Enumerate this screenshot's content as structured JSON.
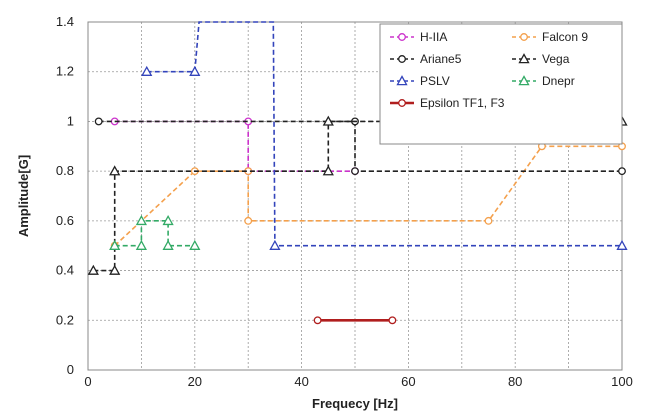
{
  "chart_data": {
    "type": "line",
    "xlabel": "Frequecy [Hz]",
    "ylabel": "Amplitude[G]",
    "xlim": [
      0,
      100
    ],
    "ylim": [
      0,
      1.4
    ],
    "xticks": [
      0,
      20,
      40,
      60,
      80,
      100
    ],
    "yticks": [
      0,
      0.2,
      0.4,
      0.6,
      0.8,
      1,
      1.2,
      1.4
    ],
    "ytick_labels": [
      "0",
      "0.2",
      "0.4",
      "0.6",
      "0.8",
      "1",
      "1.2",
      "1.4"
    ],
    "grid": true,
    "legend_position": "top-right",
    "series": [
      {
        "name": "H-IIA",
        "color": "#cc33cc",
        "marker": "circle",
        "style": "dashed",
        "x": [
          5,
          30,
          30,
          50
        ],
        "y": [
          1.0,
          1.0,
          0.8,
          0.8
        ]
      },
      {
        "name": "Falcon 9",
        "color": "#f4a04c",
        "marker": "circle",
        "style": "dashed",
        "x": [
          5,
          20,
          30,
          30,
          75,
          85,
          100
        ],
        "y": [
          0.5,
          0.8,
          0.8,
          0.6,
          0.6,
          0.9,
          0.9
        ]
      },
      {
        "name": "Ariane5",
        "color": "#222222",
        "marker": "circle",
        "style": "dashed",
        "x": [
          2,
          50,
          50,
          100
        ],
        "y": [
          1.0,
          1.0,
          0.8,
          0.8
        ]
      },
      {
        "name": "Vega",
        "color": "#222222",
        "marker": "triangle",
        "style": "dashed",
        "x": [
          1,
          5,
          5,
          45,
          45,
          100
        ],
        "y": [
          0.4,
          0.4,
          0.8,
          0.8,
          1.0,
          1.0
        ]
      },
      {
        "name": "PSLV",
        "color": "#3344bb",
        "marker": "triangle",
        "style": "dashed",
        "x": [
          11,
          20,
          20.8,
          34.7,
          35,
          100
        ],
        "y": [
          1.2,
          1.2,
          1.4,
          1.4,
          0.5,
          0.5
        ],
        "marker_mask": [
          true,
          true,
          false,
          false,
          true,
          true
        ]
      },
      {
        "name": "Dnepr",
        "color": "#33aa66",
        "marker": "triangle",
        "style": "dashed",
        "x": [
          5,
          10,
          10,
          15,
          15,
          20
        ],
        "y": [
          0.5,
          0.5,
          0.6,
          0.6,
          0.5,
          0.5
        ]
      },
      {
        "name": "Epsilon TF1, F3",
        "color": "#b01e1e",
        "marker": "circle",
        "style": "solid",
        "x": [
          43,
          57
        ],
        "y": [
          0.2,
          0.2
        ]
      }
    ]
  }
}
